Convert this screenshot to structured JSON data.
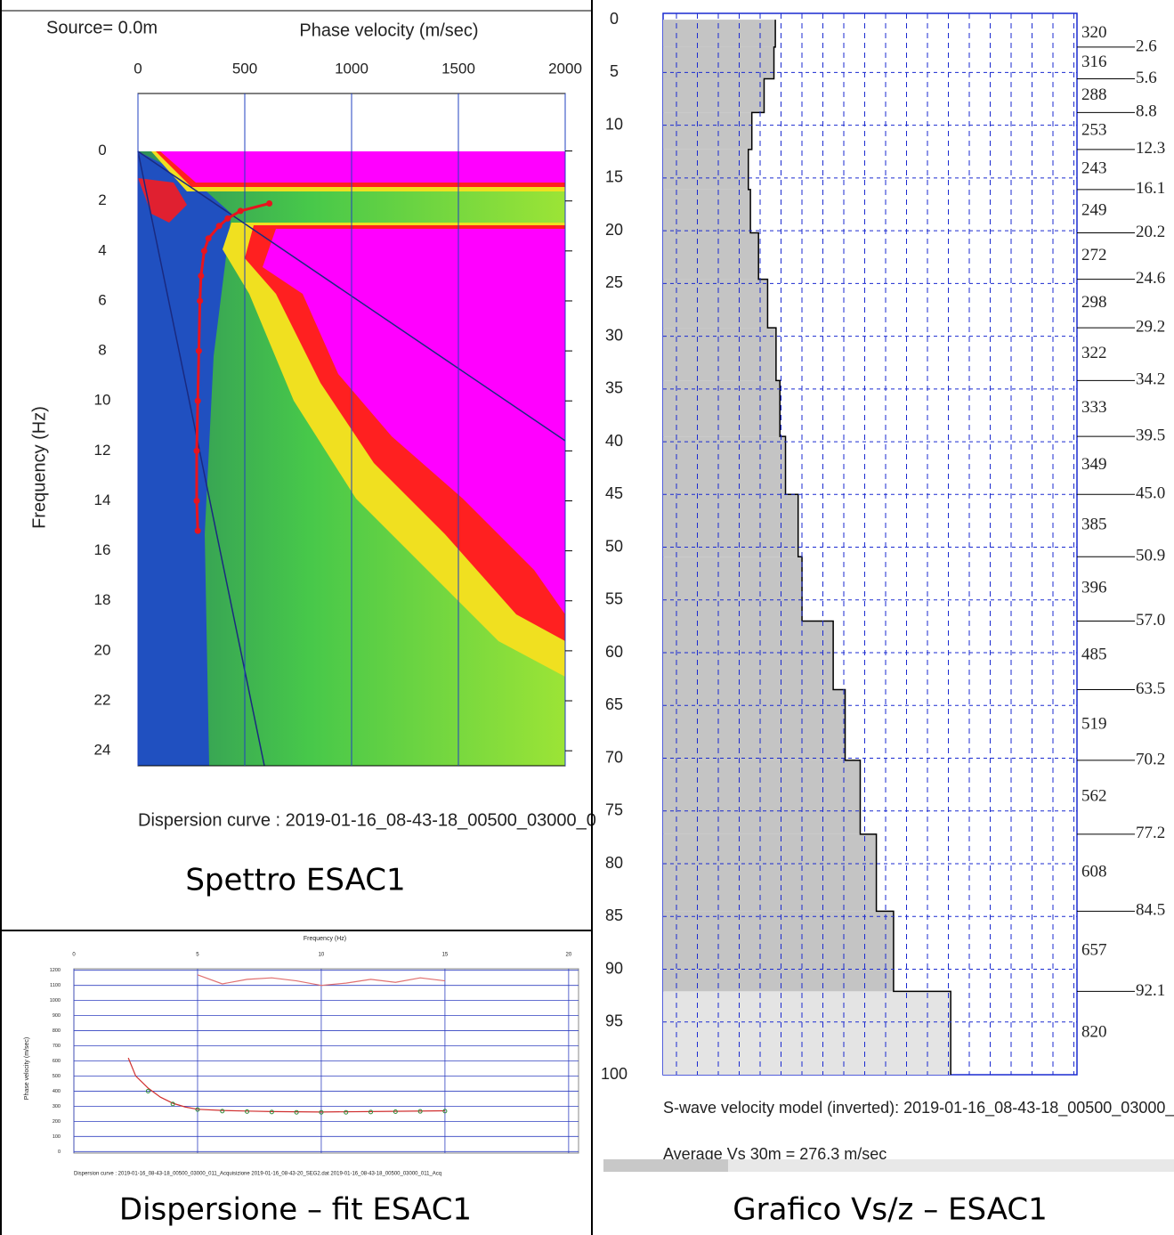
{
  "chart_data": [
    {
      "type": "spectrum",
      "title": "Source= 0.0m",
      "x_label": "Phase velocity (m/sec)",
      "y_label": "Frequency (Hz)",
      "footer": "Dispersion curve : 2019-01-16_08-43-18_00500_03000_0",
      "caption": "Spettro ESAC1",
      "xlim": [
        0,
        2000
      ],
      "xticks": [
        0,
        500,
        1000,
        1500,
        2000
      ],
      "ylim": [
        -2.3,
        24.6
      ],
      "yticks": [
        0,
        2,
        4,
        6,
        8,
        10,
        12,
        14,
        16,
        18,
        20,
        22,
        24
      ],
      "y_inverted": true,
      "grid": true,
      "series": [
        {
          "color": "#e8141e",
          "x": [
            615,
            480,
            420,
            380,
            330,
            310,
            295,
            290,
            285,
            280,
            275,
            275,
            280
          ],
          "values": [
            2.1,
            2.4,
            2.7,
            3,
            3.5,
            4,
            5,
            6,
            8,
            10,
            12,
            14,
            15.2
          ]
        }
      ]
    },
    {
      "type": "line",
      "x_label": "Frequency (Hz)",
      "y_label": "Phase velocity (m/sec)",
      "footer": "Dispersion curve : 2019-01-16_08-43-18_00500_03000_011_Acquisizione 2019-01-16_08-43-20_SEG2.dat 2019-01-16_08-43-18_00500_03000_011_Acq",
      "caption": "Dispersione – fit ESAC1",
      "xlim": [
        0,
        20.4
      ],
      "xticks": [
        0,
        5,
        10,
        15,
        20
      ],
      "ylim": [
        -10,
        1210
      ],
      "yticks": [
        0,
        100,
        200,
        300,
        400,
        500,
        600,
        700,
        800,
        900,
        1000,
        1100,
        1200
      ],
      "grid": true,
      "series": [
        {
          "color": "#e07070",
          "style": "line",
          "x": [
            5,
            6,
            7,
            8,
            9,
            10,
            11,
            12,
            13,
            14,
            15
          ],
          "values": [
            1170,
            1110,
            1140,
            1150,
            1130,
            1100,
            1115,
            1140,
            1120,
            1150,
            1130
          ]
        },
        {
          "color": "#d03030",
          "style": "line",
          "x": [
            2.2,
            2.5,
            3,
            3.5,
            4,
            4.5,
            5,
            6,
            7,
            8,
            10,
            12,
            15
          ],
          "values": [
            620,
            500,
            420,
            360,
            320,
            295,
            280,
            272,
            268,
            265,
            262,
            265,
            270
          ]
        },
        {
          "color": "#2f8a3a",
          "style": "points",
          "x": [
            3,
            4,
            5,
            6,
            7,
            8,
            9,
            10,
            11,
            12,
            13,
            14,
            15
          ],
          "values": [
            400,
            315,
            278,
            268,
            265,
            262,
            260,
            260,
            260,
            262,
            264,
            266,
            268
          ]
        }
      ]
    },
    {
      "type": "profile",
      "footer": "S-wave velocity model (inverted): 2019-01-16_08-43-18_00500_03000_0",
      "note": "Average Vs 30m = 276.3 m/sec",
      "caption": "Grafico Vs/z – ESAC1",
      "xlim": [
        0,
        1180
      ],
      "ylim": [
        -0.6,
        100
      ],
      "yticks": [
        0,
        5,
        10,
        15,
        20,
        25,
        30,
        35,
        40,
        45,
        50,
        55,
        60,
        65,
        70,
        75,
        80,
        85,
        90,
        95,
        100
      ],
      "values": [
        320,
        316,
        288,
        253,
        243,
        249,
        272,
        298,
        322,
        333,
        349,
        385,
        396,
        485,
        519,
        562,
        608,
        657,
        820
      ],
      "boundaries": [
        2.6,
        5.6,
        8.8,
        12.3,
        16.1,
        20.2,
        24.6,
        29.2,
        34.2,
        39.5,
        {
          "value": 45,
          "label": "45.0"
        },
        50.9,
        {
          "value": 57,
          "label": "57.0"
        },
        63.5,
        70.2,
        77.2,
        84.5,
        92.1
      ],
      "color": "#c4c4c4",
      "half_space_color": "#e4e4e4",
      "grid": true
    }
  ]
}
